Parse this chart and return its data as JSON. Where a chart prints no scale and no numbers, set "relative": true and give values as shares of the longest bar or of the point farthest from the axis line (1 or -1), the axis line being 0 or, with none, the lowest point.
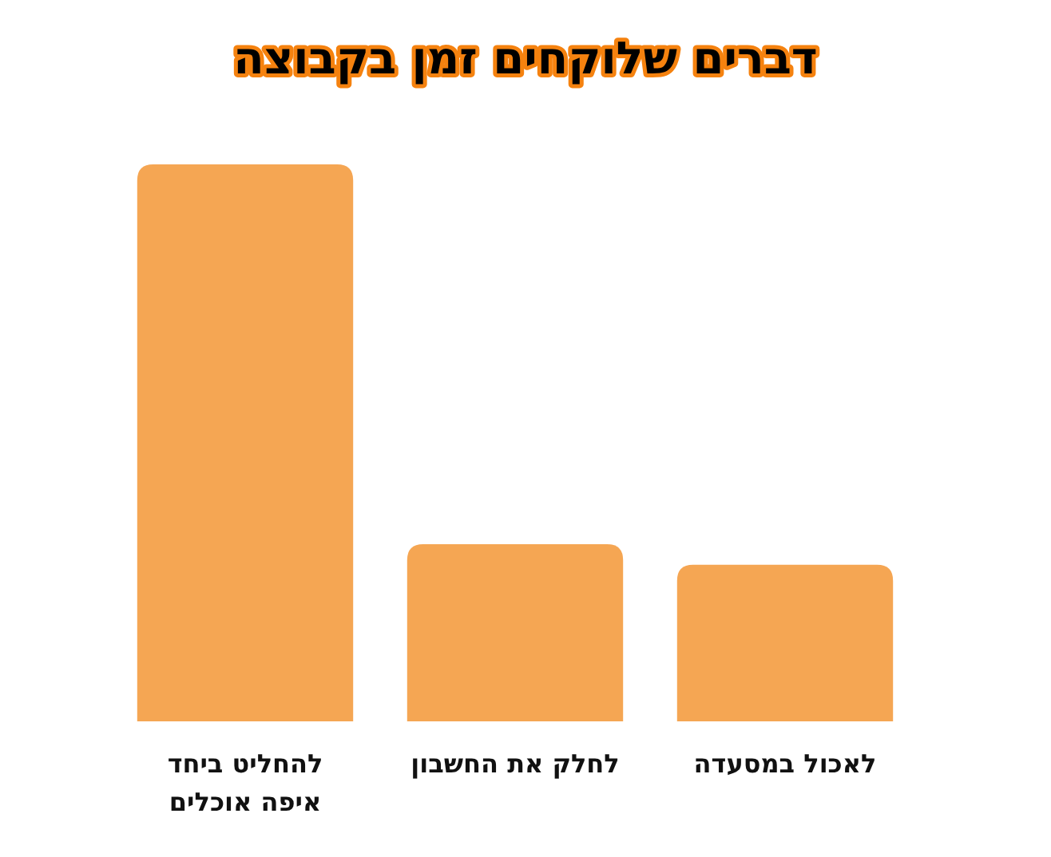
{
  "chart_data": {
    "type": "bar",
    "title": "דברים שלוקחים זמן בקבוצה",
    "categories": [
      "להחליט ביחד איפה אוכלים",
      "לחלק את החשבון",
      "לאכול במסעדה"
    ],
    "values": [
      1,
      0.318,
      0.281
    ],
    "color": "#f5a653",
    "relative": true
  }
}
